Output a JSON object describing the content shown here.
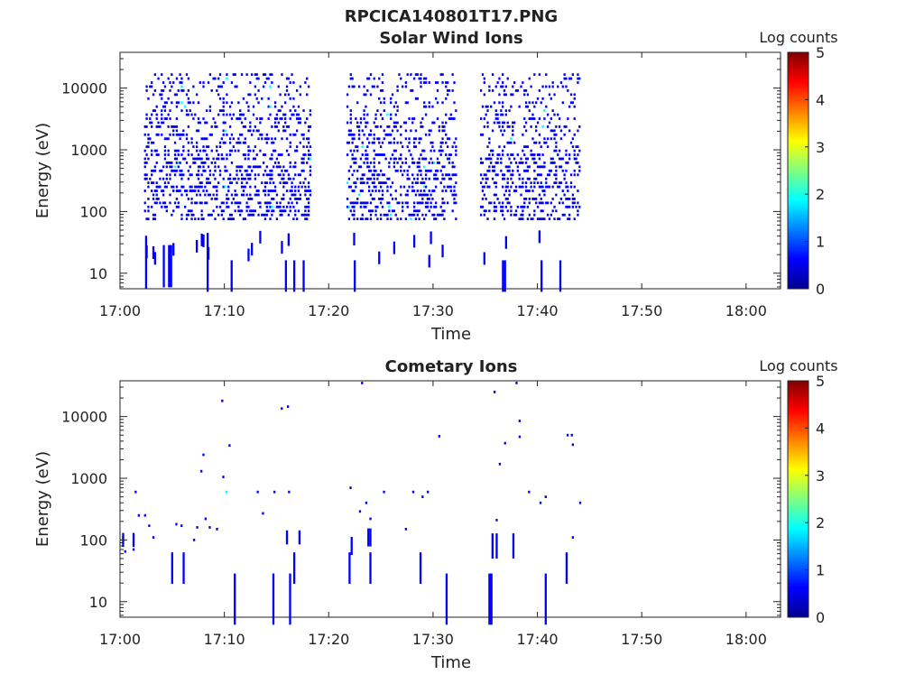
{
  "figure_title": "RPCICA140801T17.PNG",
  "colorbar": {
    "label": "Log counts",
    "ticks": [
      "0",
      "1",
      "2",
      "3",
      "4",
      "5"
    ],
    "colormap": [
      "#00008f",
      "#0000ff",
      "#0080ff",
      "#00ffff",
      "#80ff80",
      "#ffff00",
      "#ff8000",
      "#ff0000",
      "#800000"
    ]
  },
  "chart_data": [
    {
      "type": "heatmap",
      "title": "Solar Wind Ions",
      "xlabel": "Time",
      "ylabel": "Energy (eV)",
      "x_ticks": [
        "17:00",
        "17:10",
        "17:20",
        "17:30",
        "17:40",
        "17:50",
        "18:00"
      ],
      "xlim_minutes": [
        0,
        63.3
      ],
      "y_ticks": [
        "10",
        "100",
        "1000",
        "10000"
      ],
      "y_scale": "log",
      "ylim": [
        5.6,
        38000
      ],
      "clim": [
        0,
        5
      ],
      "active_intervals_minutes": [
        [
          2.3,
          18.3
        ],
        [
          21.7,
          32.2
        ],
        [
          34.5,
          44
        ]
      ],
      "low_energy_streaks": [
        {
          "t": 2.4,
          "e": 15,
          "h": 2.7,
          "v": 0.4
        },
        {
          "t": 4.1,
          "e": 13,
          "h": 2.2,
          "v": 0.4
        },
        {
          "t": 4.6,
          "e": 13,
          "h": 2.2,
          "v": 0.5
        },
        {
          "t": 4.8,
          "e": 13,
          "h": 2.2,
          "v": 0.4
        },
        {
          "t": 8.3,
          "e": 15,
          "h": 3.0,
          "v": 0.4
        },
        {
          "t": 10.6,
          "e": 9,
          "h": 1.8,
          "v": 0.4
        },
        {
          "t": 15.8,
          "e": 9,
          "h": 1.8,
          "v": 0.4
        },
        {
          "t": 16.6,
          "e": 9,
          "h": 1.8,
          "v": 0.4
        },
        {
          "t": 17.5,
          "e": 9,
          "h": 1.8,
          "v": 0.4
        },
        {
          "t": 22.4,
          "e": 9,
          "h": 1.8,
          "v": 0.4
        },
        {
          "t": 36.6,
          "e": 9,
          "h": 1.8,
          "v": 0.5
        },
        {
          "t": 36.8,
          "e": 9,
          "h": 1.8,
          "v": 0.4
        },
        {
          "t": 40.3,
          "e": 9,
          "h": 1.8,
          "v": 0.4
        },
        {
          "t": 42.1,
          "e": 9,
          "h": 1.8,
          "v": 0.4
        }
      ]
    },
    {
      "type": "heatmap",
      "title": "Cometary Ions",
      "xlabel": "Time",
      "ylabel": "Energy (eV)",
      "x_ticks": [
        "17:00",
        "17:10",
        "17:20",
        "17:30",
        "17:40",
        "17:50",
        "18:00"
      ],
      "xlim_minutes": [
        0,
        63.3
      ],
      "y_ticks": [
        "10",
        "100",
        "1000",
        "10000"
      ],
      "y_scale": "log",
      "ylim": [
        5.6,
        38000
      ],
      "clim": [
        0,
        5
      ],
      "points": [
        {
          "t": 0.2,
          "e": 110,
          "v": 0.4
        },
        {
          "t": 0.4,
          "e": 65,
          "v": 0.4
        },
        {
          "t": 1.2,
          "e": 70,
          "v": 0.4
        },
        {
          "t": 1.4,
          "e": 600,
          "v": 0.5
        },
        {
          "t": 1.7,
          "e": 250,
          "v": 0.4
        },
        {
          "t": 2.3,
          "e": 250,
          "v": 0.4
        },
        {
          "t": 2.7,
          "e": 170,
          "v": 0.4
        },
        {
          "t": 3.1,
          "e": 110,
          "v": 0.4
        },
        {
          "t": 5.3,
          "e": 180,
          "v": 0.4
        },
        {
          "t": 5.8,
          "e": 170,
          "v": 0.4
        },
        {
          "t": 7.0,
          "e": 100,
          "v": 0.4
        },
        {
          "t": 7.3,
          "e": 160,
          "v": 0.4
        },
        {
          "t": 7.7,
          "e": 1300,
          "v": 0.4
        },
        {
          "t": 7.9,
          "e": 2400,
          "v": 0.4
        },
        {
          "t": 8.1,
          "e": 220,
          "v": 0.4
        },
        {
          "t": 8.5,
          "e": 160,
          "v": 0.4
        },
        {
          "t": 9.2,
          "e": 150,
          "v": 0.4
        },
        {
          "t": 9.7,
          "e": 18000,
          "v": 0.4
        },
        {
          "t": 9.8,
          "e": 1050,
          "v": 0.4
        },
        {
          "t": 10.1,
          "e": 600,
          "v": 2.0
        },
        {
          "t": 10.4,
          "e": 3400,
          "v": 0.4
        },
        {
          "t": 13.1,
          "e": 600,
          "v": 0.4
        },
        {
          "t": 13.6,
          "e": 270,
          "v": 0.4
        },
        {
          "t": 14.7,
          "e": 600,
          "v": 0.4
        },
        {
          "t": 15.4,
          "e": 13500,
          "v": 0.4
        },
        {
          "t": 16.0,
          "e": 14500,
          "v": 0.4
        },
        {
          "t": 16.1,
          "e": 600,
          "v": 0.4
        },
        {
          "t": 22.0,
          "e": 700,
          "v": 0.4
        },
        {
          "t": 22.9,
          "e": 290,
          "v": 0.4
        },
        {
          "t": 23.1,
          "e": 35000,
          "v": 0.4
        },
        {
          "t": 23.5,
          "e": 400,
          "v": 0.4
        },
        {
          "t": 23.9,
          "e": 220,
          "v": 0.4
        },
        {
          "t": 25.2,
          "e": 600,
          "v": 0.4
        },
        {
          "t": 27.3,
          "e": 150,
          "v": 0.4
        },
        {
          "t": 28.0,
          "e": 600,
          "v": 0.4
        },
        {
          "t": 28.9,
          "e": 500,
          "v": 0.4
        },
        {
          "t": 29.4,
          "e": 600,
          "v": 0.4
        },
        {
          "t": 30.5,
          "e": 4800,
          "v": 0.4
        },
        {
          "t": 35.8,
          "e": 25000,
          "v": 0.4
        },
        {
          "t": 36.0,
          "e": 210,
          "v": 0.4
        },
        {
          "t": 36.3,
          "e": 1700,
          "v": 0.4
        },
        {
          "t": 36.8,
          "e": 3700,
          "v": 0.4
        },
        {
          "t": 37.9,
          "e": 35000,
          "v": 0.4
        },
        {
          "t": 38.2,
          "e": 8500,
          "v": 0.4
        },
        {
          "t": 38.2,
          "e": 4700,
          "v": 0.4
        },
        {
          "t": 39.1,
          "e": 600,
          "v": 0.4
        },
        {
          "t": 40.2,
          "e": 400,
          "v": 0.4
        },
        {
          "t": 40.7,
          "e": 500,
          "v": 0.4
        },
        {
          "t": 42.8,
          "e": 5000,
          "v": 0.4
        },
        {
          "t": 43.2,
          "e": 5000,
          "v": 0.4
        },
        {
          "t": 43.3,
          "e": 3500,
          "v": 0.4
        },
        {
          "t": 44.0,
          "e": 400,
          "v": 0.4
        },
        {
          "t": 43.3,
          "e": 110,
          "v": 0.4
        }
      ],
      "streaks": [
        {
          "t": 0.2,
          "e": 100,
          "h": 1.3,
          "v": 0.4
        },
        {
          "t": 1.2,
          "e": 100,
          "h": 1.3,
          "v": 0.4
        },
        {
          "t": 4.9,
          "e": 35,
          "h": 1.8,
          "v": 0.4
        },
        {
          "t": 6.0,
          "e": 35,
          "h": 1.8,
          "v": 0.4
        },
        {
          "t": 10.9,
          "e": 11,
          "h": 2.6,
          "v": 0.4
        },
        {
          "t": 14.6,
          "e": 11,
          "h": 2.6,
          "v": 0.4
        },
        {
          "t": 16.2,
          "e": 11,
          "h": 2.6,
          "v": 0.4
        },
        {
          "t": 16.6,
          "e": 35,
          "h": 1.8,
          "v": 0.4
        },
        {
          "t": 15.9,
          "e": 110,
          "h": 1.3,
          "v": 0.4
        },
        {
          "t": 17.1,
          "e": 110,
          "h": 1.3,
          "v": 0.4
        },
        {
          "t": 21.9,
          "e": 35,
          "h": 1.8,
          "v": 0.4
        },
        {
          "t": 22.1,
          "e": 80,
          "h": 1.4,
          "v": 0.4
        },
        {
          "t": 23.7,
          "e": 110,
          "h": 1.4,
          "v": 0.5
        },
        {
          "t": 23.9,
          "e": 110,
          "h": 1.4,
          "v": 0.5
        },
        {
          "t": 23.9,
          "e": 35,
          "h": 1.8,
          "v": 0.4
        },
        {
          "t": 28.7,
          "e": 35,
          "h": 1.8,
          "v": 0.4
        },
        {
          "t": 31.2,
          "e": 11,
          "h": 2.6,
          "v": 0.5
        },
        {
          "t": 35.3,
          "e": 11,
          "h": 2.6,
          "v": 0.5
        },
        {
          "t": 35.5,
          "e": 11,
          "h": 2.6,
          "v": 0.5
        },
        {
          "t": 35.6,
          "e": 80,
          "h": 1.6,
          "v": 0.5
        },
        {
          "t": 36.0,
          "e": 80,
          "h": 1.6,
          "v": 0.4
        },
        {
          "t": 37.6,
          "e": 80,
          "h": 1.6,
          "v": 0.4
        },
        {
          "t": 40.7,
          "e": 11,
          "h": 2.6,
          "v": 0.4
        },
        {
          "t": 42.7,
          "e": 35,
          "h": 1.8,
          "v": 0.4
        }
      ]
    }
  ]
}
